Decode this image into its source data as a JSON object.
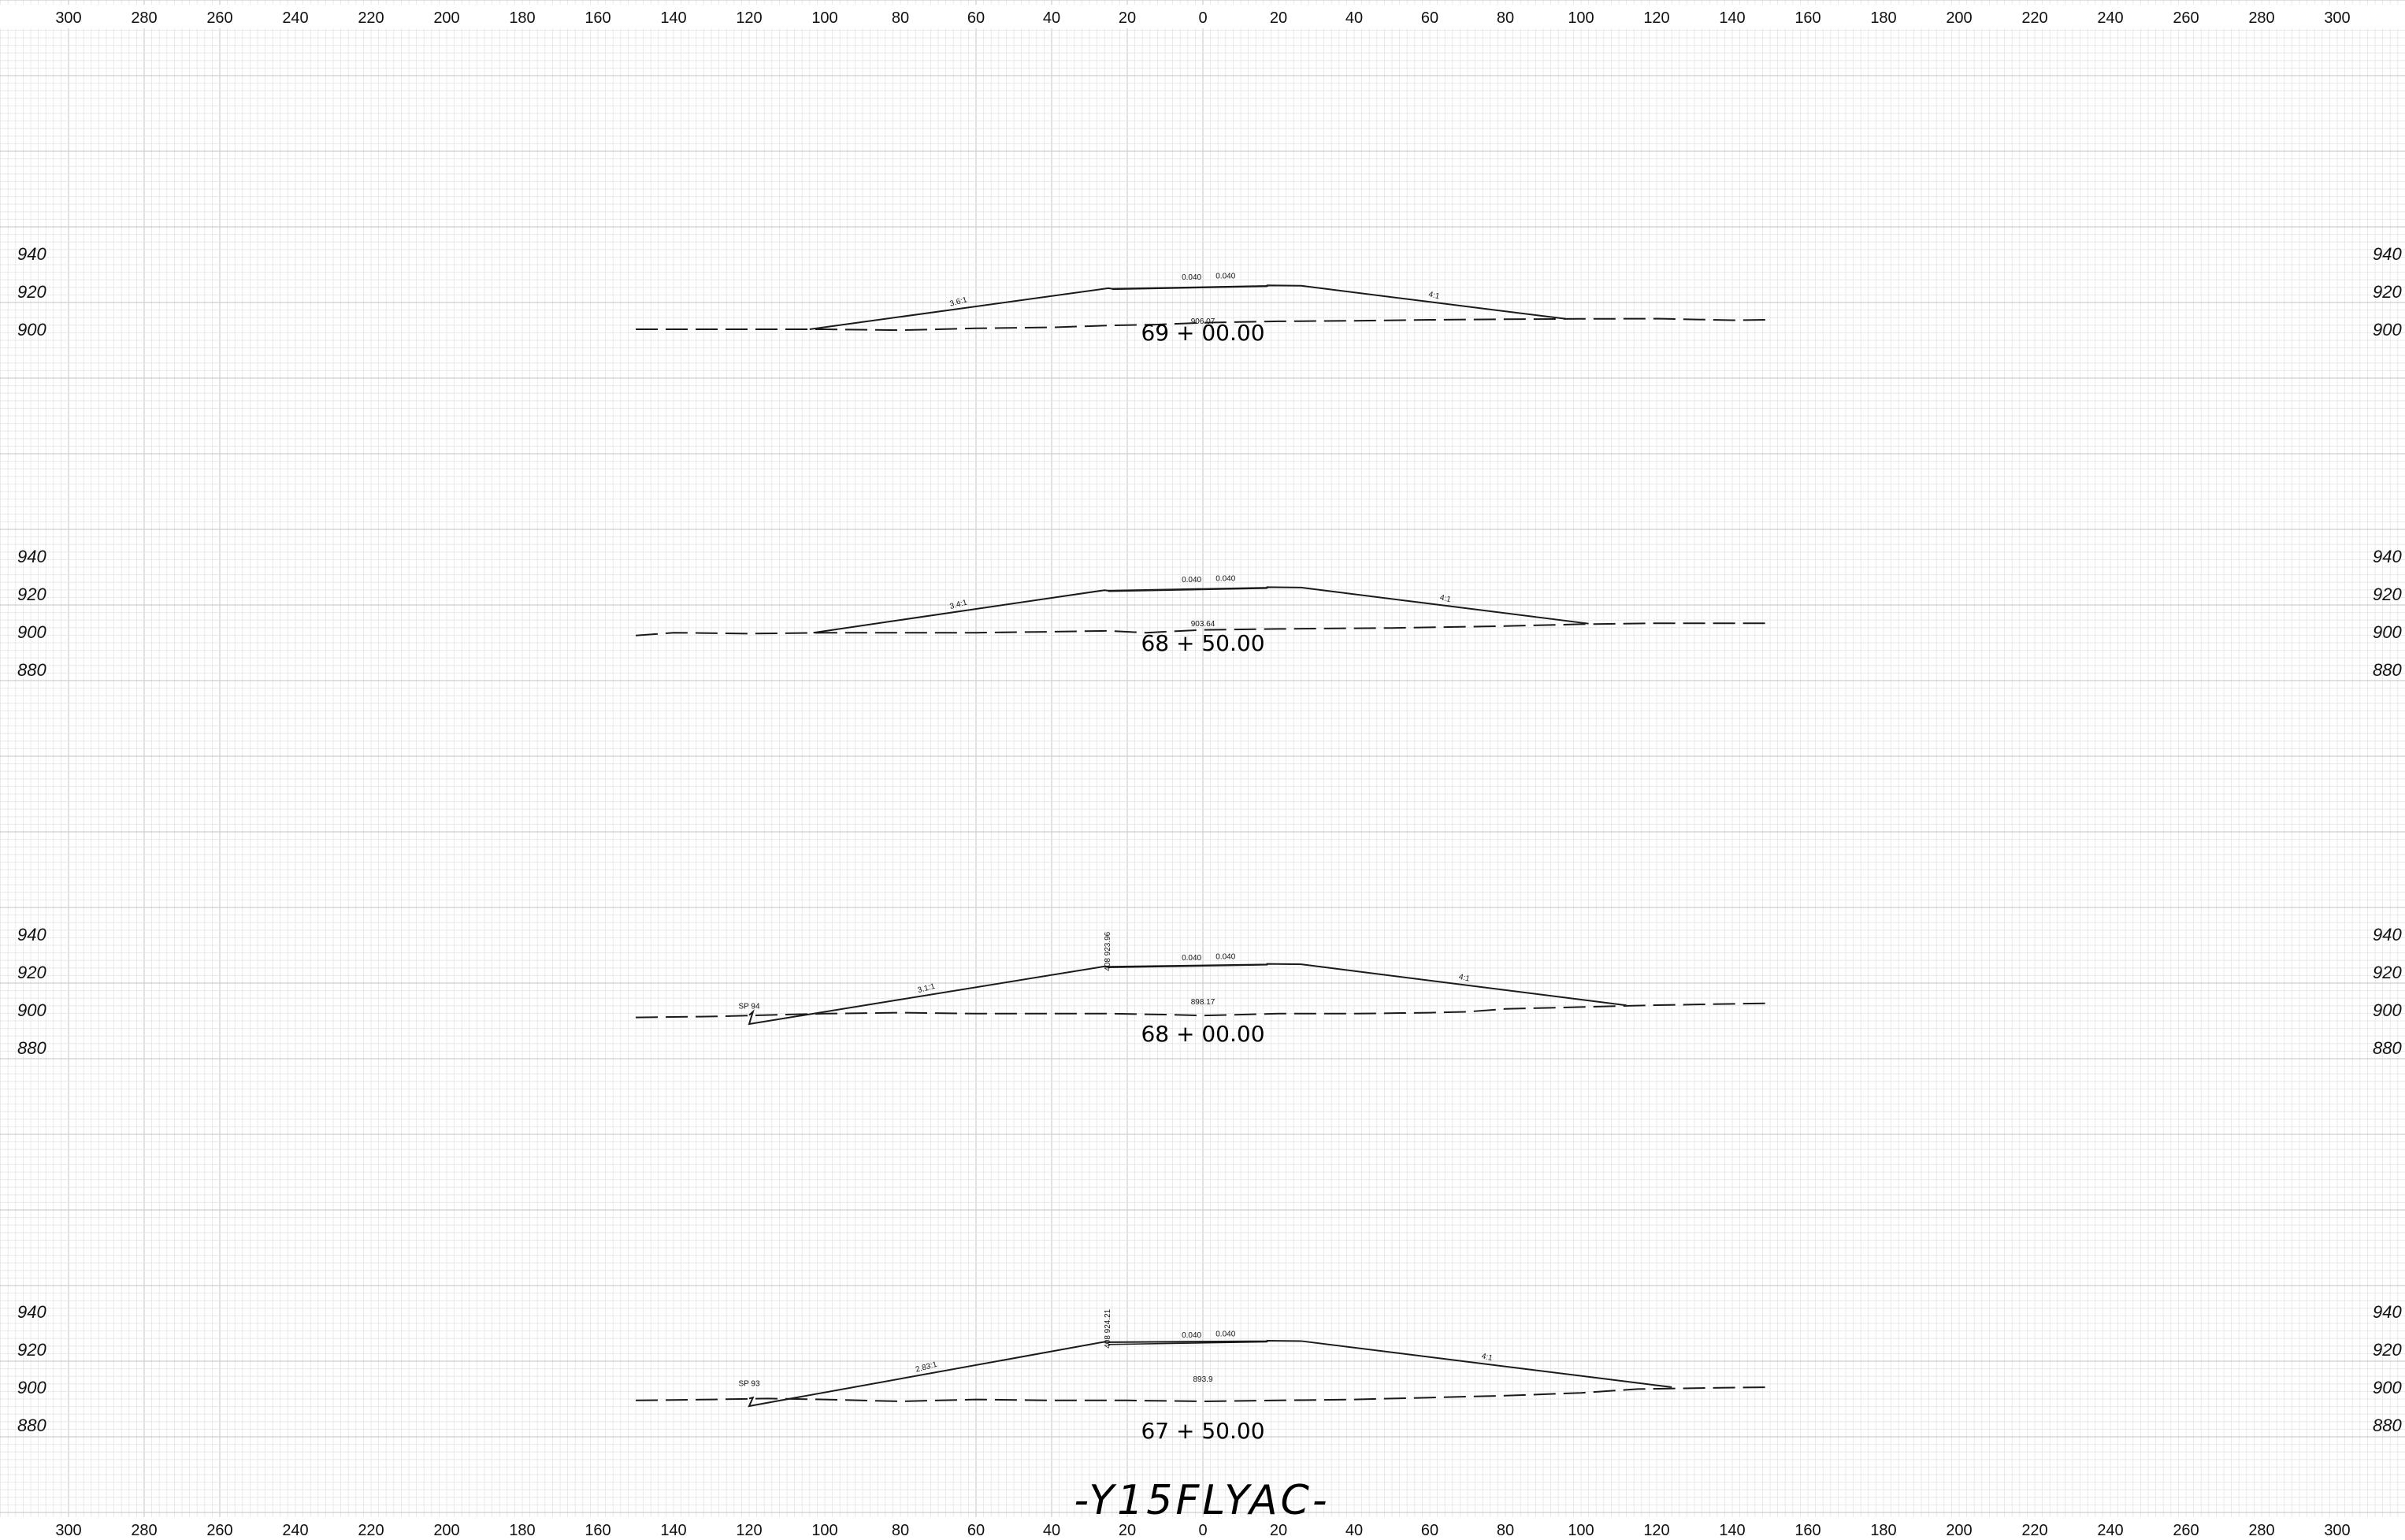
{
  "sheet": {
    "title": "-Y15FLYAC-",
    "colors": {
      "grid_minor": "#e4e4e4",
      "grid_major": "#cfcfcf",
      "line": "#1a1a1a"
    },
    "offset_ticks": [
      "300",
      "280",
      "260",
      "240",
      "220",
      "200",
      "180",
      "160",
      "140",
      "120",
      "100",
      "80",
      "60",
      "40",
      "20",
      "0",
      "20",
      "40",
      "60",
      "80",
      "100",
      "120",
      "140",
      "160",
      "180",
      "200",
      "220",
      "240",
      "260",
      "280",
      "300"
    ]
  },
  "sections": [
    {
      "station": "69 + 00.00",
      "elev_labels": [
        "940",
        "920",
        "900"
      ],
      "ground_elev": "906.07",
      "slope_left": "3.6:1",
      "slope_right": "4:1",
      "cross_slope_left": "0.040",
      "cross_slope_right": "0.040",
      "ground": [
        [
          -150,
          900
        ],
        [
          -130,
          900
        ],
        [
          -100,
          900
        ],
        [
          -80,
          899.5
        ],
        [
          -60,
          900.5
        ],
        [
          -40,
          901
        ],
        [
          -25,
          902
        ],
        [
          -12,
          902.5
        ],
        [
          0,
          903.5
        ],
        [
          20,
          904.2
        ],
        [
          40,
          904.5
        ],
        [
          60,
          905
        ],
        [
          80,
          905.3
        ],
        [
          100,
          905.5
        ],
        [
          120,
          905.6
        ],
        [
          140,
          904.8
        ],
        [
          150,
          905
        ]
      ],
      "template": [
        [
          -104,
          900
        ],
        [
          -25,
          921.7
        ],
        [
          -24,
          921.4
        ],
        [
          17,
          922.9
        ],
        [
          17,
          923.2
        ],
        [
          26,
          923
        ],
        [
          96,
          905.5
        ]
      ],
      "subgrade": [
        [
          -24,
          921.1
        ],
        [
          17,
          922.7
        ]
      ]
    },
    {
      "station": "68 + 50.00",
      "elev_labels": [
        "940",
        "920",
        "900",
        "880"
      ],
      "ground_elev": "903.64",
      "slope_left": "3.4:1",
      "slope_right": "4:1",
      "cross_slope_left": "0.040",
      "cross_slope_right": "0.040",
      "ground": [
        [
          -150,
          898
        ],
        [
          -140,
          899.5
        ],
        [
          -120,
          899
        ],
        [
          -100,
          899.5
        ],
        [
          -80,
          899.5
        ],
        [
          -60,
          899.5
        ],
        [
          -40,
          900
        ],
        [
          -25,
          900.5
        ],
        [
          -15,
          899.5
        ],
        [
          0,
          901
        ],
        [
          20,
          901.5
        ],
        [
          50,
          902
        ],
        [
          80,
          903
        ],
        [
          100,
          904
        ],
        [
          120,
          904.5
        ],
        [
          150,
          904.5
        ]
      ],
      "template": [
        [
          -103,
          899.5
        ],
        [
          -26,
          922
        ],
        [
          -25,
          921.7
        ],
        [
          17,
          923.3
        ],
        [
          17,
          923.6
        ],
        [
          26,
          923.4
        ],
        [
          102,
          904.3
        ]
      ],
      "subgrade": [
        [
          -25,
          921.4
        ],
        [
          17,
          923
        ]
      ]
    },
    {
      "station": "68 + 00.00",
      "elev_labels": [
        "940",
        "920",
        "900",
        "880"
      ],
      "ground_elev": "898.17",
      "slope_left": "3.1:1",
      "slope_right": "4:1",
      "cross_slope_left": "0.040",
      "cross_slope_right": "0.040",
      "point_label": "SP 94",
      "vertical_label": "408 923.96",
      "ground": [
        [
          -150,
          896
        ],
        [
          -130,
          896.5
        ],
        [
          -120,
          897
        ],
        [
          -100,
          898
        ],
        [
          -80,
          898.5
        ],
        [
          -60,
          898
        ],
        [
          -40,
          898
        ],
        [
          -25,
          898
        ],
        [
          -10,
          897.5
        ],
        [
          0,
          897
        ],
        [
          20,
          898
        ],
        [
          40,
          898
        ],
        [
          60,
          898.5
        ],
        [
          70,
          899
        ],
        [
          80,
          900.5
        ],
        [
          100,
          901.5
        ],
        [
          120,
          902.5
        ],
        [
          150,
          903.5
        ]
      ],
      "template": [
        [
          -120,
          897.2
        ],
        [
          -119,
          899
        ],
        [
          -120,
          892.5
        ],
        [
          -26,
          923
        ],
        [
          -25,
          922.8
        ],
        [
          17,
          924
        ],
        [
          17,
          924.3
        ],
        [
          26,
          924.1
        ],
        [
          112,
          902.4
        ]
      ],
      "subgrade": [
        [
          -25,
          922.4
        ],
        [
          17,
          923.8
        ]
      ]
    },
    {
      "station": "67 + 50.00",
      "elev_labels": [
        "940",
        "920",
        "900",
        "880"
      ],
      "ground_elev": "893.9",
      "slope_left": "2.83:1",
      "slope_right": "4:1",
      "cross_slope_left": "0.040",
      "cross_slope_right": "0.040",
      "point_label": "SP 93",
      "vertical_label": "408 924.21",
      "ground": [
        [
          -150,
          893
        ],
        [
          -130,
          893.5
        ],
        [
          -115,
          894
        ],
        [
          -100,
          893.5
        ],
        [
          -80,
          892.5
        ],
        [
          -60,
          893.5
        ],
        [
          -40,
          893
        ],
        [
          -20,
          893
        ],
        [
          0,
          892.5
        ],
        [
          20,
          893
        ],
        [
          40,
          893.5
        ],
        [
          60,
          894.5
        ],
        [
          80,
          895.5
        ],
        [
          100,
          897
        ],
        [
          115,
          899
        ],
        [
          130,
          899.5
        ],
        [
          150,
          900
        ]
      ],
      "template": [
        [
          -120,
          894
        ],
        [
          -119,
          894.5
        ],
        [
          -120,
          890
        ],
        [
          -26,
          924
        ],
        [
          -25,
          923.8
        ],
        [
          17,
          924.3
        ],
        [
          17,
          924.6
        ],
        [
          26,
          924.4
        ],
        [
          124,
          900
        ]
      ],
      "subgrade": [
        [
          -25,
          922.6
        ],
        [
          17,
          924
        ]
      ]
    }
  ]
}
